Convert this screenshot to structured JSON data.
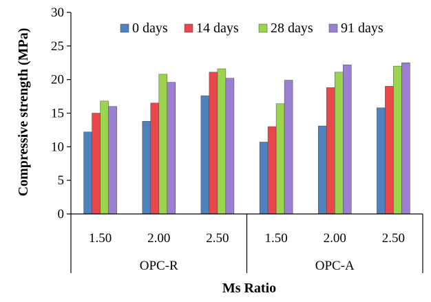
{
  "chart_data": {
    "type": "bar",
    "title": "",
    "xlabel": "Ms Ratio",
    "ylabel": "Compressive strength (MPa)",
    "ylim": [
      0,
      30
    ],
    "yticks": [
      0,
      5,
      10,
      15,
      20,
      25,
      30
    ],
    "grid": false,
    "legend_position": "top",
    "categories": [
      "1.50",
      "2.00",
      "2.50",
      "1.50",
      "2.00",
      "2.50"
    ],
    "groups": [
      {
        "label": "OPC-R",
        "categories": [
          0,
          1,
          2
        ]
      },
      {
        "label": "OPC-A",
        "categories": [
          3,
          4,
          5
        ]
      }
    ],
    "series": [
      {
        "name": "0 days",
        "color": "#4F81BD",
        "values": [
          12.2,
          13.8,
          17.6,
          10.7,
          13.1,
          15.8
        ]
      },
      {
        "name": "14 days",
        "color": "#E8474C",
        "values": [
          15.0,
          16.5,
          21.1,
          13.0,
          18.8,
          19.0
        ]
      },
      {
        "name": "28 days",
        "color": "#9BD54E",
        "values": [
          16.8,
          20.8,
          21.6,
          16.4,
          21.1,
          22.0
        ]
      },
      {
        "name": "91 days",
        "color": "#9B7FD0",
        "values": [
          16.0,
          19.6,
          20.2,
          19.9,
          22.2,
          22.5
        ]
      }
    ]
  }
}
